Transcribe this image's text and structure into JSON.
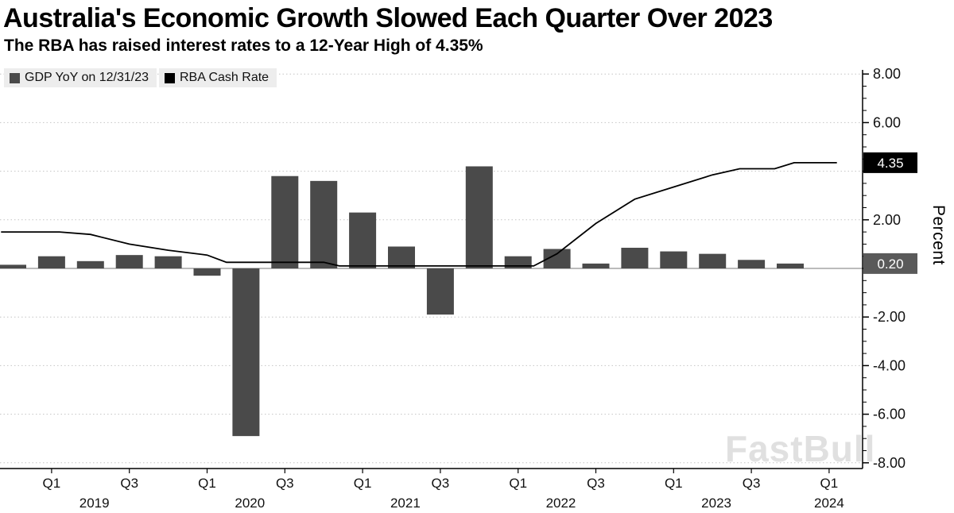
{
  "header": {
    "title": "Australia's Economic Growth Slowed Each Quarter Over 2023",
    "subtitle": "The RBA has raised interest rates to a 12-Year High of 4.35%"
  },
  "legend": [
    {
      "label": "GDP YoY on 12/31/23",
      "color": "#4a4a4a"
    },
    {
      "label": "RBA Cash Rate",
      "color": "#000000"
    }
  ],
  "watermark": "FastBull",
  "chart_data": {
    "type": "bar+line",
    "title": "Australia's Economic Growth Slowed Each Quarter Over 2023",
    "subtitle": "The RBA has raised interest rates to a 12-Year High of 4.35%",
    "ylabel": "Percent",
    "ylim": [
      -8.5,
      8.5
    ],
    "grid": "dotted horizontal gridlines, solid zero line",
    "legend_position": "top-left",
    "y_gridlines": [
      8,
      6,
      4,
      2,
      0,
      -2,
      -4,
      -6,
      -8
    ],
    "y_ticks": [
      {
        "value": 8,
        "label": "8.00"
      },
      {
        "value": 6,
        "label": "6.00"
      },
      {
        "value": 2,
        "label": "2.00"
      },
      {
        "value": -2,
        "label": "-2.00"
      },
      {
        "value": -4,
        "label": "-4.00"
      },
      {
        "value": -6,
        "label": "-6.00"
      },
      {
        "value": -8,
        "label": "-8.00"
      }
    ],
    "axis_badges": [
      {
        "value": 4.35,
        "label": "4.35",
        "bg": "#000000",
        "fg": "#ffffff"
      },
      {
        "value": 0.2,
        "label": "0.20",
        "bg": "#5a5a5a",
        "fg": "#ffffff"
      }
    ],
    "gdp_bars": {
      "name": "GDP YoY on 12/31/23",
      "color": "#4a4a4a",
      "quarters": [
        "2018 Q4",
        "2019 Q1",
        "2019 Q2",
        "2019 Q3",
        "2019 Q4",
        "2020 Q1",
        "2020 Q2",
        "2020 Q3",
        "2020 Q4",
        "2021 Q1",
        "2021 Q2",
        "2021 Q3",
        "2021 Q4",
        "2022 Q1",
        "2022 Q2",
        "2022 Q3",
        "2022 Q4",
        "2023 Q1",
        "2023 Q2",
        "2023 Q3",
        "2023 Q4"
      ],
      "values": [
        0.15,
        0.5,
        0.3,
        0.55,
        0.5,
        -0.3,
        -6.9,
        3.8,
        3.6,
        2.3,
        0.9,
        -1.9,
        4.2,
        0.5,
        0.8,
        0.2,
        0.85,
        0.7,
        0.6,
        0.35,
        0.2
      ]
    },
    "rate_line": {
      "name": "RBA Cash Rate",
      "color": "#000000",
      "x_unit": "quarters since 2018 Q4",
      "points": [
        [
          -0.3,
          1.5
        ],
        [
          1.2,
          1.5
        ],
        [
          2,
          1.4
        ],
        [
          3,
          1.0
        ],
        [
          4,
          0.75
        ],
        [
          5,
          0.55
        ],
        [
          5.5,
          0.25
        ],
        [
          8,
          0.25
        ],
        [
          8.4,
          0.1
        ],
        [
          13.4,
          0.1
        ],
        [
          14,
          0.6
        ],
        [
          15,
          1.85
        ],
        [
          16,
          2.85
        ],
        [
          17,
          3.35
        ],
        [
          18,
          3.85
        ],
        [
          18.7,
          4.1
        ],
        [
          19.6,
          4.1
        ],
        [
          20.1,
          4.35
        ],
        [
          21.2,
          4.35
        ]
      ]
    },
    "x_ticks": [
      {
        "t": 1,
        "label": "Q1"
      },
      {
        "t": 3,
        "label": "Q3"
      },
      {
        "t": 5,
        "label": "Q1"
      },
      {
        "t": 7,
        "label": "Q3"
      },
      {
        "t": 9,
        "label": "Q1"
      },
      {
        "t": 11,
        "label": "Q3"
      },
      {
        "t": 13,
        "label": "Q1"
      },
      {
        "t": 15,
        "label": "Q3"
      },
      {
        "t": 17,
        "label": "Q1"
      },
      {
        "t": 19,
        "label": "Q3"
      },
      {
        "t": 21,
        "label": "Q1"
      }
    ],
    "x_years": [
      {
        "t": 2.1,
        "label": "2019"
      },
      {
        "t": 6.1,
        "label": "2020"
      },
      {
        "t": 10.1,
        "label": "2021"
      },
      {
        "t": 14.1,
        "label": "2022"
      },
      {
        "t": 18.1,
        "label": "2023"
      },
      {
        "t": 21,
        "label": "2024"
      }
    ]
  }
}
